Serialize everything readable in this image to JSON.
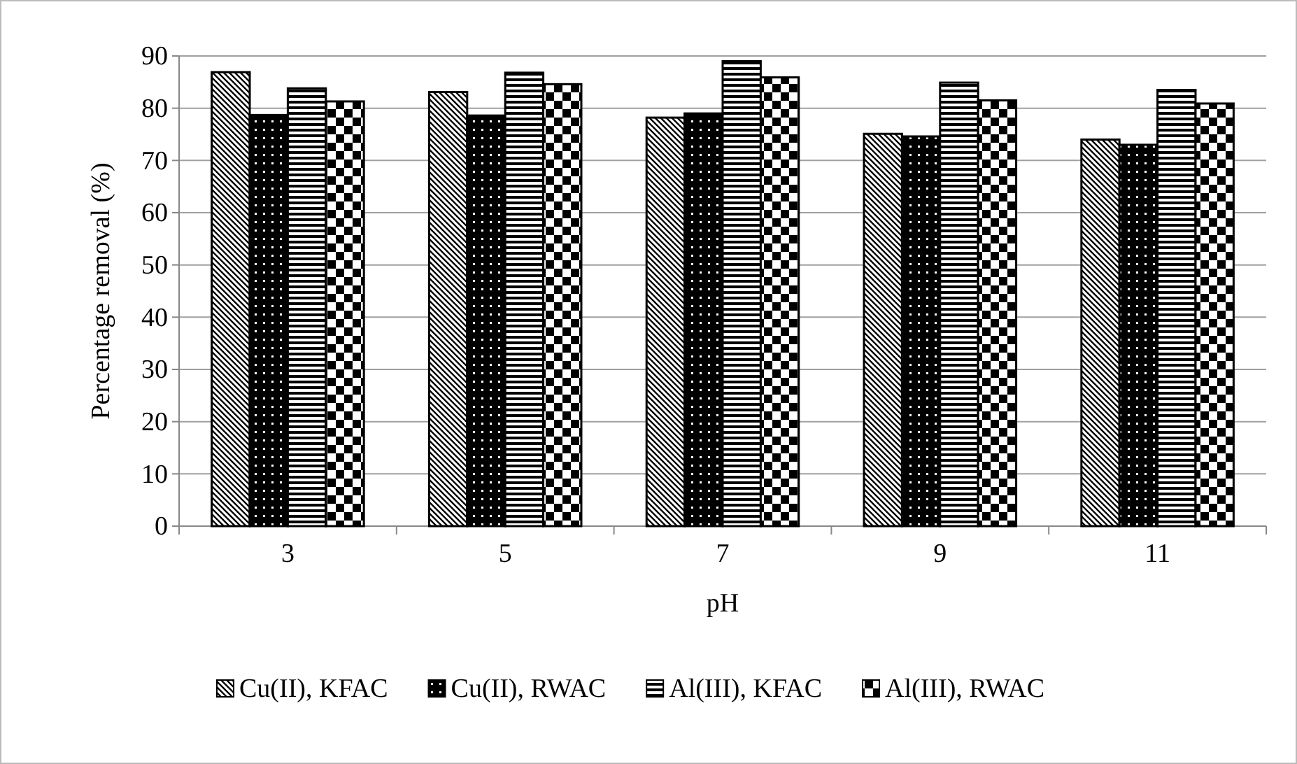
{
  "chart_data": {
    "type": "bar",
    "xlabel": "pH",
    "ylabel": "Percentage removal (%)",
    "categories": [
      "3",
      "5",
      "7",
      "9",
      "11"
    ],
    "series": [
      {
        "name": "Cu(II), KFAC",
        "color": "#000000",
        "values": [
          86.9,
          83.1,
          78.2,
          75.1,
          74.0
        ]
      },
      {
        "name": "Cu(II), RWAC",
        "color": "#000000",
        "values": [
          78.7,
          78.6,
          79.0,
          74.6,
          73.0
        ]
      },
      {
        "name": "Al(III), KFAC",
        "color": "#000000",
        "values": [
          83.8,
          86.8,
          89.0,
          84.9,
          83.5
        ]
      },
      {
        "name": "Al(III), RWAC",
        "color": "#000000",
        "values": [
          81.3,
          84.6,
          85.9,
          81.5,
          80.9
        ]
      }
    ],
    "ylim": [
      0,
      90
    ],
    "yticks": [
      0,
      10,
      20,
      30,
      40,
      50,
      60,
      70,
      80,
      90
    ],
    "grid": "y",
    "legend": "bottom"
  }
}
